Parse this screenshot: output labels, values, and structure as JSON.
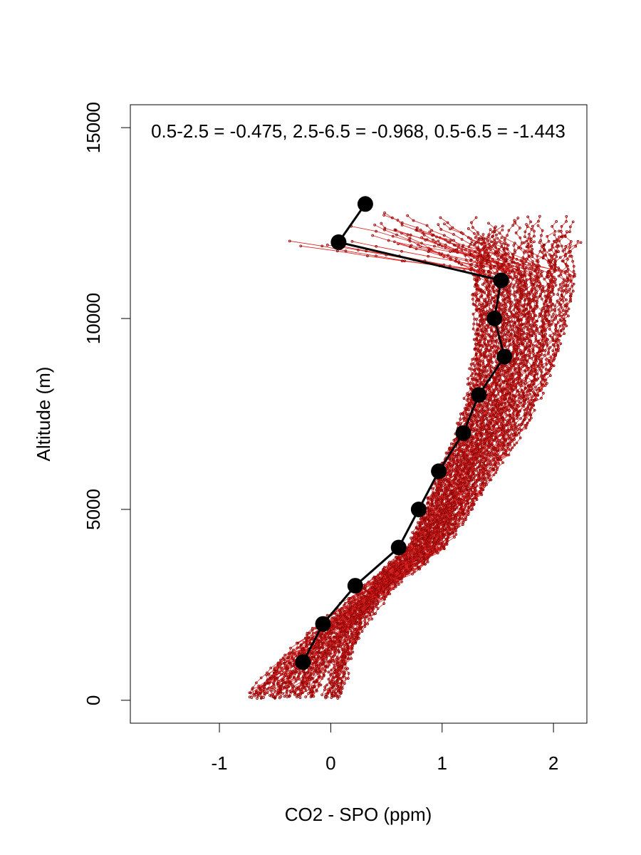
{
  "chart_data": {
    "type": "line",
    "title": "",
    "annotation": "0.5-2.5 = -0.475, 2.5-6.5 = -0.968, 0.5-6.5 = -1.443",
    "xlabel": "CO2 - SPO (ppm)",
    "ylabel": "Altitude (m)",
    "xlim": [
      -1.8,
      2.3
    ],
    "ylim": [
      -600,
      15600
    ],
    "xticks": [
      "-1",
      "0",
      "1",
      "2"
    ],
    "yticks": [
      "0",
      "5000",
      "10000",
      "15000"
    ],
    "grid": false,
    "legend": "none",
    "colors": {
      "profiles": "#8b0000",
      "profile_lines": "#dd2222",
      "mean": "#000000"
    },
    "series": [
      {
        "role": "mean-profile",
        "x": [
          -0.25,
          -0.07,
          0.22,
          0.61,
          0.79,
          0.97,
          1.19,
          1.33,
          1.56,
          1.47,
          1.53,
          0.07,
          0.31
        ],
        "y": [
          1000,
          2000,
          3000,
          4000,
          5000,
          6000,
          7000,
          8000,
          9000,
          10000,
          11000,
          12000,
          13000
        ]
      }
    ],
    "profile_count": 70
  }
}
